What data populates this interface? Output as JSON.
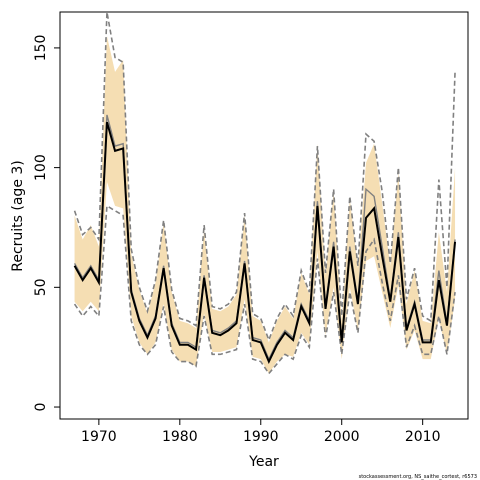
{
  "chart_data": {
    "type": "line",
    "xlabel": "Year",
    "ylabel": "Recruits (age 3)",
    "xlim": [
      1965.2,
      2015.6
    ],
    "ylim": [
      -5,
      165
    ],
    "xticks": [
      1970,
      1980,
      1990,
      2000,
      2010
    ],
    "yticks": [
      0,
      50,
      100,
      150
    ],
    "x": [
      1967,
      1968,
      1969,
      1970,
      1971,
      1972,
      1973,
      1974,
      1975,
      1976,
      1977,
      1978,
      1979,
      1980,
      1981,
      1982,
      1983,
      1984,
      1985,
      1986,
      1987,
      1988,
      1989,
      1990,
      1991,
      1992,
      1993,
      1994,
      1995,
      1996,
      1997,
      1998,
      1999,
      2000,
      2001,
      2002,
      2003,
      2004,
      2005,
      2006,
      2007,
      2008,
      2009,
      2010,
      2011,
      2012,
      2013,
      2014
    ],
    "series": [
      {
        "name": "",
        "role": "estimate",
        "color": "#000000",
        "values": [
          59,
          53,
          58,
          52,
          119,
          107,
          108,
          48,
          36,
          29,
          37,
          58,
          34,
          26,
          26,
          24,
          54,
          31,
          30,
          32,
          35,
          60,
          28,
          27,
          19,
          26,
          31,
          28,
          42,
          35,
          84,
          41,
          67,
          27,
          65,
          43,
          79,
          83,
          63,
          44,
          71,
          32,
          43,
          27,
          27,
          53,
          34,
          69
        ]
      },
      {
        "name": "",
        "role": "confidence-band",
        "color": "#f5deb3",
        "lower": [
          44,
          40,
          44,
          40,
          94,
          84,
          83,
          38,
          27,
          22,
          27,
          43,
          24,
          19,
          19,
          17,
          39,
          23,
          23,
          24,
          25,
          45,
          21,
          20,
          14,
          19,
          22,
          21,
          31,
          26,
          65,
          30,
          50,
          20,
          50,
          32,
          61,
          63,
          48,
          33,
          51,
          24,
          32,
          20,
          20,
          37,
          22,
          45
        ],
        "upper": [
          80,
          70,
          76,
          67,
          155,
          140,
          145,
          64,
          49,
          39,
          52,
          77,
          48,
          36,
          35,
          33,
          74,
          41,
          40,
          42,
          47,
          80,
          38,
          36,
          27,
          36,
          42,
          37,
          56,
          47,
          110,
          55,
          90,
          36,
          87,
          58,
          102,
          110,
          85,
          59,
          98,
          43,
          57,
          36,
          35,
          73,
          48,
          100
        ]
      },
      {
        "name": "",
        "role": "estimate-alt",
        "color": "#808080",
        "values": [
          60,
          54,
          59,
          53,
          122,
          109,
          110,
          49,
          37,
          30,
          38,
          59,
          35,
          27,
          27,
          25,
          55,
          32,
          31,
          33,
          36,
          61,
          29,
          28,
          20,
          27,
          32,
          29,
          43,
          36,
          86,
          42,
          69,
          28,
          67,
          44,
          91,
          88,
          67,
          45,
          73,
          33,
          44,
          28,
          28,
          57,
          35,
          70
        ]
      },
      {
        "name": "",
        "role": "dashed-bounds",
        "color": "#808080",
        "lower": [
          43,
          38,
          42,
          38,
          84,
          82,
          80,
          36,
          26,
          22,
          26,
          42,
          23,
          19,
          19,
          17,
          38,
          22,
          22,
          23,
          24,
          43,
          20,
          19,
          14,
          18,
          22,
          20,
          30,
          25,
          62,
          29,
          48,
          22,
          48,
          31,
          65,
          70,
          52,
          36,
          55,
          25,
          34,
          22,
          22,
          38,
          22,
          48
        ],
        "upper": [
          82,
          72,
          75,
          70,
          165,
          146,
          144,
          66,
          50,
          40,
          53,
          78,
          49,
          37,
          36,
          34,
          76,
          42,
          41,
          43,
          48,
          81,
          39,
          37,
          28,
          37,
          43,
          38,
          57,
          48,
          109,
          56,
          91,
          38,
          88,
          59,
          114,
          111,
          90,
          60,
          100,
          45,
          58,
          38,
          36,
          95,
          50,
          140
        ]
      }
    ]
  },
  "credit": "stockassessment.org, NS_saithe_cortest, r6573"
}
